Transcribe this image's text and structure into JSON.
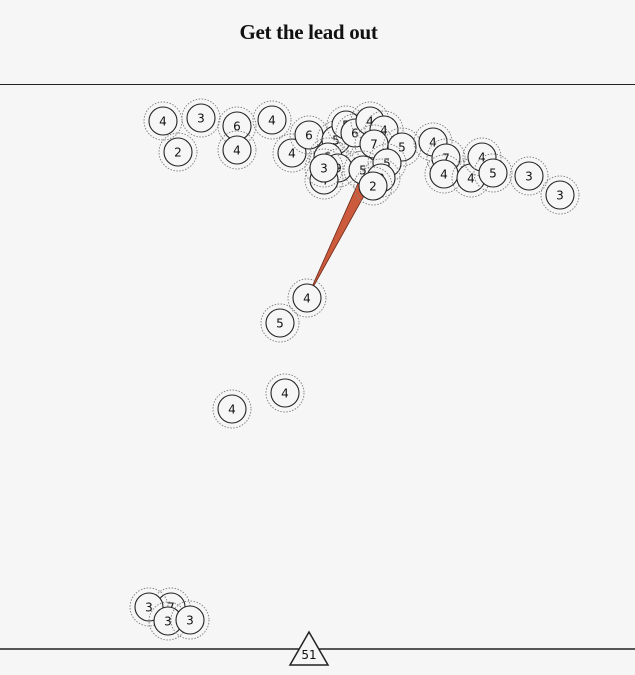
{
  "chart_data": {
    "type": "scatter",
    "title": "Get the lead out",
    "x_range": [
      0,
      635
    ],
    "y_range": [
      0,
      675
    ],
    "colors": {
      "background": "#f7f6f6",
      "ring": "#222222",
      "halo": "#888888",
      "pointer": "#cc5a3c",
      "pointer_stroke": "#6b2a1a"
    },
    "marker": {
      "shape": "triangle",
      "label": "51"
    },
    "pointer": {
      "from": [
        307,
        298
      ],
      "to": [
        366,
        180
      ]
    },
    "points": [
      {
        "x": 163,
        "y": 121,
        "label": "4"
      },
      {
        "x": 201,
        "y": 118,
        "label": "3"
      },
      {
        "x": 178,
        "y": 152,
        "label": "2"
      },
      {
        "x": 237,
        "y": 126,
        "label": "6"
      },
      {
        "x": 237,
        "y": 150,
        "label": "4"
      },
      {
        "x": 272,
        "y": 120,
        "label": "4"
      },
      {
        "x": 292,
        "y": 153,
        "label": "4"
      },
      {
        "x": 309,
        "y": 135,
        "label": "6"
      },
      {
        "x": 336,
        "y": 140,
        "label": "5"
      },
      {
        "x": 346,
        "y": 125,
        "label": "5"
      },
      {
        "x": 355,
        "y": 133,
        "label": "6"
      },
      {
        "x": 370,
        "y": 121,
        "label": "4"
      },
      {
        "x": 384,
        "y": 130,
        "label": "4"
      },
      {
        "x": 374,
        "y": 144,
        "label": "7"
      },
      {
        "x": 402,
        "y": 147,
        "label": "5"
      },
      {
        "x": 328,
        "y": 157,
        "label": "5"
      },
      {
        "x": 338,
        "y": 168,
        "label": "9"
      },
      {
        "x": 324,
        "y": 180,
        "label": "4"
      },
      {
        "x": 324,
        "y": 168,
        "label": "3"
      },
      {
        "x": 363,
        "y": 170,
        "label": "5"
      },
      {
        "x": 387,
        "y": 163,
        "label": "5"
      },
      {
        "x": 381,
        "y": 178,
        "label": "3"
      },
      {
        "x": 373,
        "y": 186,
        "label": "2"
      },
      {
        "x": 433,
        "y": 142,
        "label": "4"
      },
      {
        "x": 446,
        "y": 158,
        "label": "7"
      },
      {
        "x": 444,
        "y": 174,
        "label": "4"
      },
      {
        "x": 471,
        "y": 178,
        "label": "4"
      },
      {
        "x": 482,
        "y": 157,
        "label": "4"
      },
      {
        "x": 493,
        "y": 173,
        "label": "5"
      },
      {
        "x": 529,
        "y": 176,
        "label": "3"
      },
      {
        "x": 560,
        "y": 195,
        "label": "3"
      },
      {
        "x": 307,
        "y": 298,
        "label": "4"
      },
      {
        "x": 280,
        "y": 323,
        "label": "5"
      },
      {
        "x": 285,
        "y": 393,
        "label": "4"
      },
      {
        "x": 232,
        "y": 409,
        "label": "4"
      },
      {
        "x": 171,
        "y": 607,
        "label": "7"
      },
      {
        "x": 149,
        "y": 607,
        "label": "3"
      },
      {
        "x": 168,
        "y": 621,
        "label": "3"
      },
      {
        "x": 190,
        "y": 620,
        "label": "3"
      }
    ]
  }
}
